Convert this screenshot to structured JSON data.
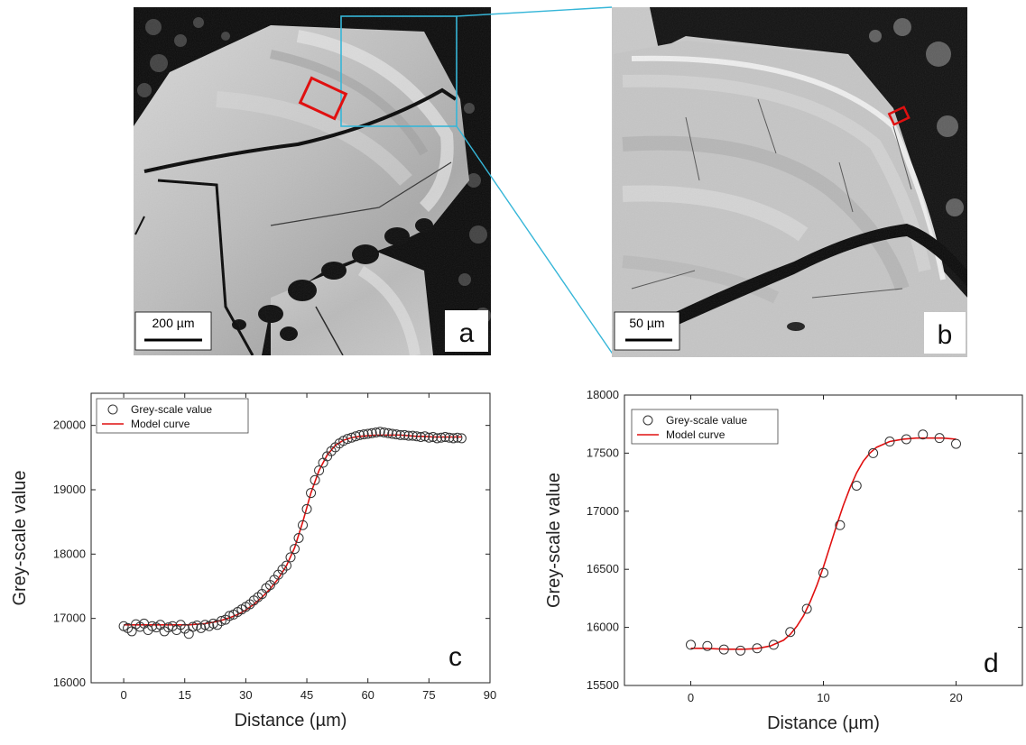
{
  "panels": {
    "a": {
      "letter": "a",
      "scale_bar": "200 µm"
    },
    "b": {
      "letter": "b",
      "scale_bar": "50 µm"
    }
  },
  "colors": {
    "observed": "#333333",
    "model": "#e01010",
    "zoom_box": "#36b6d8",
    "profile_box": "#e01010"
  },
  "chart_data": [
    {
      "panel": "c",
      "type": "scatter",
      "xlabel": "Distance (µm)",
      "ylabel": "Grey-scale value",
      "xlim": [
        -8,
        90
      ],
      "ylim": [
        16000,
        20500
      ],
      "xticks": [
        0,
        15,
        30,
        45,
        60,
        75,
        90
      ],
      "yticks": [
        16000,
        17000,
        18000,
        19000,
        20000
      ],
      "grid": false,
      "legend": "top-left",
      "series": [
        {
          "name": "Grey-scale value",
          "style": "open-circle",
          "x": [
            0,
            1,
            2,
            3,
            4,
            5,
            6,
            7,
            8,
            9,
            10,
            11,
            12,
            13,
            14,
            15,
            16,
            17,
            18,
            19,
            20,
            21,
            22,
            23,
            24,
            25,
            26,
            27,
            28,
            29,
            30,
            31,
            32,
            33,
            34,
            35,
            36,
            37,
            38,
            39,
            40,
            41,
            42,
            43,
            44,
            45,
            46,
            47,
            48,
            49,
            50,
            51,
            52,
            53,
            54,
            55,
            56,
            57,
            58,
            59,
            60,
            61,
            62,
            63,
            64,
            65,
            66,
            67,
            68,
            69,
            70,
            71,
            72,
            73,
            74,
            75,
            76,
            77,
            78,
            79,
            80,
            81,
            82,
            83
          ],
          "y": [
            16880,
            16850,
            16800,
            16910,
            16870,
            16920,
            16820,
            16880,
            16860,
            16900,
            16800,
            16860,
            16880,
            16820,
            16900,
            16840,
            16760,
            16870,
            16890,
            16850,
            16900,
            16880,
            16920,
            16900,
            16960,
            16980,
            17040,
            17060,
            17100,
            17140,
            17180,
            17220,
            17280,
            17330,
            17380,
            17470,
            17520,
            17600,
            17680,
            17760,
            17820,
            17950,
            18080,
            18250,
            18450,
            18700,
            18950,
            19150,
            19300,
            19420,
            19520,
            19600,
            19660,
            19720,
            19760,
            19790,
            19810,
            19830,
            19850,
            19860,
            19870,
            19880,
            19890,
            19900,
            19890,
            19880,
            19870,
            19860,
            19850,
            19850,
            19840,
            19840,
            19830,
            19820,
            19830,
            19810,
            19820,
            19800,
            19810,
            19820,
            19810,
            19800,
            19810,
            19800
          ]
        },
        {
          "name": "Model curve",
          "style": "line",
          "x": [
            0,
            2,
            4,
            6,
            8,
            10,
            12,
            14,
            16,
            18,
            20,
            22,
            24,
            26,
            28,
            30,
            32,
            34,
            36,
            38,
            40,
            42,
            44,
            46,
            48,
            50,
            52,
            54,
            56,
            58,
            60,
            62,
            64,
            66,
            68,
            70,
            72,
            74,
            76,
            78,
            80,
            82,
            83
          ],
          "y": [
            16900,
            16900,
            16900,
            16900,
            16900,
            16900,
            16900,
            16900,
            16900,
            16910,
            16920,
            16940,
            16970,
            17010,
            17060,
            17130,
            17220,
            17330,
            17460,
            17620,
            17820,
            18100,
            18500,
            18950,
            19300,
            19540,
            19690,
            19770,
            19810,
            19830,
            19840,
            19850,
            19850,
            19850,
            19850,
            19840,
            19830,
            19830,
            19820,
            19820,
            19820,
            19820,
            19820
          ]
        }
      ]
    },
    {
      "panel": "d",
      "type": "scatter",
      "xlabel": "Distance (µm)",
      "ylabel": "Grey-scale value",
      "xlim": [
        -5,
        25
      ],
      "ylim": [
        15500,
        18000
      ],
      "xticks": [
        0,
        10,
        20
      ],
      "yticks": [
        15500,
        16000,
        16500,
        17000,
        17500,
        18000
      ],
      "grid": false,
      "legend": "top-left",
      "series": [
        {
          "name": "Grey-scale value",
          "style": "open-circle",
          "x": [
            0,
            1.25,
            2.5,
            3.75,
            5.0,
            6.25,
            7.5,
            8.75,
            10.0,
            11.25,
            12.5,
            13.75,
            15.0,
            16.25,
            17.5,
            18.75,
            20.0
          ],
          "y": [
            15850,
            15840,
            15810,
            15800,
            15820,
            15850,
            15960,
            16160,
            16470,
            16880,
            17220,
            17500,
            17600,
            17620,
            17660,
            17630,
            17580
          ]
        },
        {
          "name": "Model curve",
          "style": "line",
          "x": [
            0,
            1,
            2,
            3,
            4,
            5,
            6,
            7,
            7.5,
            8,
            8.5,
            9,
            9.5,
            10,
            10.5,
            11,
            11.5,
            12,
            12.5,
            13,
            13.5,
            14,
            15,
            16,
            17,
            18,
            19,
            20
          ],
          "y": [
            15820,
            15820,
            15815,
            15812,
            15812,
            15818,
            15840,
            15890,
            15940,
            16010,
            16100,
            16220,
            16360,
            16520,
            16700,
            16880,
            17050,
            17200,
            17330,
            17430,
            17500,
            17550,
            17600,
            17620,
            17630,
            17630,
            17630,
            17620
          ]
        }
      ]
    }
  ]
}
